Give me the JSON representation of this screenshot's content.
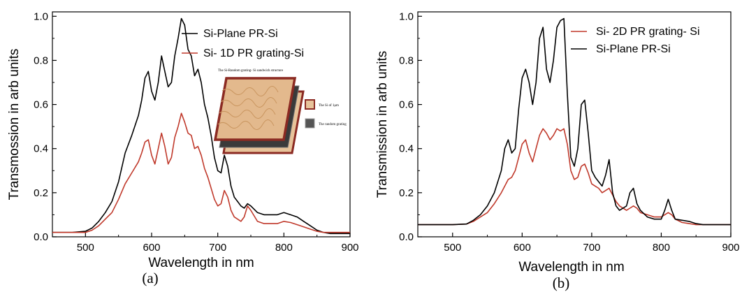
{
  "chart_data": [
    {
      "type": "line",
      "panel_label": "(a)",
      "title": "",
      "xlabel": "Wavelength in nm",
      "ylabel": "Transmossion in arb units",
      "xlim": [
        450,
        900
      ],
      "ylim": [
        0.0,
        1.02
      ],
      "xticks": [
        500,
        600,
        700,
        800,
        900
      ],
      "yticks": [
        0.0,
        0.2,
        0.4,
        0.6,
        0.8,
        1.0
      ],
      "grid": false,
      "legend": "top-right",
      "series": [
        {
          "name": "Si-Plane PR-Si",
          "color": "#000000",
          "x": [
            450,
            480,
            500,
            510,
            520,
            530,
            540,
            550,
            560,
            570,
            580,
            585,
            590,
            595,
            600,
            605,
            610,
            615,
            620,
            625,
            630,
            635,
            640,
            645,
            650,
            655,
            660,
            665,
            670,
            675,
            680,
            685,
            690,
            695,
            700,
            705,
            710,
            715,
            720,
            725,
            730,
            735,
            740,
            745,
            750,
            760,
            770,
            780,
            790,
            800,
            810,
            820,
            830,
            840,
            850,
            860,
            870,
            880,
            900
          ],
          "y": [
            0.02,
            0.02,
            0.025,
            0.04,
            0.07,
            0.11,
            0.16,
            0.25,
            0.38,
            0.46,
            0.55,
            0.62,
            0.72,
            0.75,
            0.66,
            0.62,
            0.7,
            0.82,
            0.75,
            0.68,
            0.7,
            0.82,
            0.9,
            0.99,
            0.96,
            0.85,
            0.82,
            0.73,
            0.76,
            0.7,
            0.6,
            0.54,
            0.46,
            0.36,
            0.3,
            0.29,
            0.37,
            0.32,
            0.23,
            0.18,
            0.16,
            0.14,
            0.13,
            0.15,
            0.14,
            0.11,
            0.1,
            0.1,
            0.1,
            0.11,
            0.1,
            0.09,
            0.07,
            0.05,
            0.03,
            0.02,
            0.015,
            0.015,
            0.015
          ]
        },
        {
          "name": "Si- 1D PR grating-Si",
          "color": "#c0392b",
          "x": [
            450,
            480,
            500,
            510,
            520,
            530,
            540,
            550,
            560,
            570,
            580,
            585,
            590,
            595,
            600,
            605,
            610,
            615,
            620,
            625,
            630,
            635,
            640,
            645,
            650,
            655,
            660,
            665,
            670,
            675,
            680,
            685,
            690,
            695,
            700,
            705,
            710,
            715,
            720,
            725,
            730,
            735,
            740,
            745,
            750,
            760,
            770,
            780,
            790,
            800,
            810,
            820,
            830,
            840,
            850,
            860,
            870,
            880,
            900
          ],
          "y": [
            0.02,
            0.02,
            0.02,
            0.03,
            0.05,
            0.08,
            0.11,
            0.17,
            0.24,
            0.29,
            0.34,
            0.38,
            0.43,
            0.44,
            0.37,
            0.33,
            0.4,
            0.47,
            0.41,
            0.33,
            0.36,
            0.45,
            0.5,
            0.56,
            0.52,
            0.47,
            0.46,
            0.4,
            0.41,
            0.37,
            0.31,
            0.27,
            0.22,
            0.17,
            0.14,
            0.15,
            0.21,
            0.18,
            0.12,
            0.09,
            0.08,
            0.07,
            0.09,
            0.14,
            0.12,
            0.07,
            0.06,
            0.06,
            0.06,
            0.07,
            0.065,
            0.055,
            0.045,
            0.035,
            0.025,
            0.02,
            0.02,
            0.02,
            0.02
          ]
        }
      ],
      "inset": {
        "title": "The Si-Random grating- Si sandwich structure",
        "legend": [
          "The Si of 1μm",
          "The random grating"
        ]
      }
    },
    {
      "type": "line",
      "panel_label": "(b)",
      "title": "",
      "xlabel": "Wavelength in nm",
      "ylabel": "Transmission in arb units",
      "xlim": [
        450,
        900
      ],
      "ylim": [
        0.0,
        1.02
      ],
      "xticks": [
        500,
        600,
        700,
        800,
        900
      ],
      "yticks": [
        0.0,
        0.2,
        0.4,
        0.6,
        0.8,
        1.0
      ],
      "grid": false,
      "legend": "top-right",
      "series": [
        {
          "name": "Si- 2D PR grating- Si",
          "color": "#c0392b",
          "x": [
            450,
            500,
            520,
            530,
            540,
            550,
            560,
            570,
            580,
            585,
            590,
            595,
            600,
            605,
            610,
            615,
            620,
            625,
            630,
            635,
            640,
            645,
            650,
            655,
            660,
            665,
            670,
            675,
            680,
            685,
            690,
            695,
            700,
            705,
            710,
            715,
            720,
            725,
            730,
            735,
            740,
            750,
            755,
            760,
            765,
            770,
            780,
            790,
            800,
            805,
            810,
            815,
            820,
            830,
            840,
            850,
            860,
            880,
            900
          ],
          "y": [
            0.055,
            0.055,
            0.058,
            0.07,
            0.09,
            0.11,
            0.15,
            0.2,
            0.26,
            0.27,
            0.3,
            0.36,
            0.42,
            0.44,
            0.38,
            0.34,
            0.4,
            0.46,
            0.49,
            0.47,
            0.44,
            0.46,
            0.49,
            0.48,
            0.49,
            0.42,
            0.3,
            0.26,
            0.27,
            0.32,
            0.33,
            0.29,
            0.24,
            0.23,
            0.22,
            0.2,
            0.21,
            0.22,
            0.19,
            0.16,
            0.14,
            0.12,
            0.13,
            0.14,
            0.13,
            0.11,
            0.1,
            0.09,
            0.09,
            0.1,
            0.11,
            0.1,
            0.08,
            0.065,
            0.06,
            0.055,
            0.055,
            0.055,
            0.055
          ]
        },
        {
          "name": "Si-Plane PR-Si",
          "color": "#000000",
          "x": [
            450,
            500,
            520,
            530,
            540,
            550,
            560,
            570,
            575,
            580,
            585,
            590,
            595,
            600,
            605,
            610,
            615,
            620,
            625,
            630,
            635,
            640,
            645,
            650,
            655,
            660,
            665,
            670,
            675,
            680,
            685,
            690,
            695,
            700,
            705,
            710,
            715,
            720,
            725,
            730,
            735,
            740,
            750,
            755,
            760,
            765,
            770,
            780,
            790,
            800,
            805,
            810,
            815,
            820,
            830,
            840,
            850,
            860,
            880,
            900
          ],
          "y": [
            0.055,
            0.055,
            0.058,
            0.075,
            0.1,
            0.14,
            0.2,
            0.3,
            0.4,
            0.44,
            0.38,
            0.4,
            0.58,
            0.72,
            0.76,
            0.7,
            0.6,
            0.7,
            0.9,
            0.95,
            0.76,
            0.7,
            0.8,
            0.95,
            0.98,
            0.99,
            0.65,
            0.36,
            0.32,
            0.4,
            0.6,
            0.62,
            0.47,
            0.3,
            0.27,
            0.25,
            0.23,
            0.28,
            0.35,
            0.2,
            0.14,
            0.12,
            0.14,
            0.2,
            0.22,
            0.15,
            0.12,
            0.09,
            0.08,
            0.08,
            0.12,
            0.17,
            0.12,
            0.08,
            0.075,
            0.07,
            0.06,
            0.055,
            0.055,
            0.055
          ]
        }
      ]
    }
  ]
}
